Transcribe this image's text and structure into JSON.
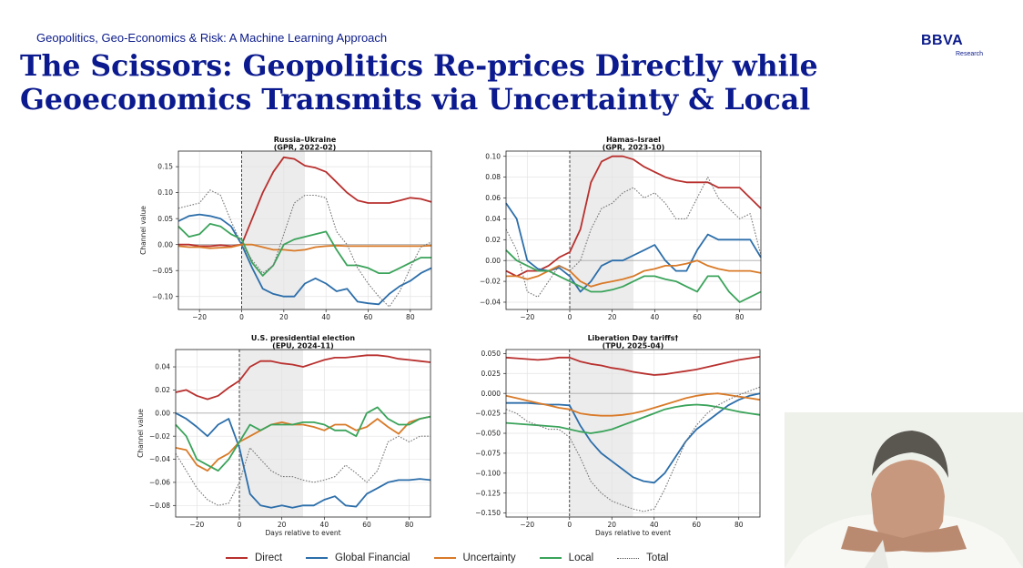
{
  "header": {
    "subtitle": "Geopolitics, Geo-Economics & Risk: A Machine Learning Approach",
    "title": "The Scissors: Geopolitics Re-prices Directly while Geoeconomics Transmits via Uncertainty & Local",
    "logo": "BBVA",
    "logo_sub": "Research"
  },
  "legend": {
    "direct": "Direct",
    "global_financial": "Global Financial",
    "uncertainty": "Uncertainty",
    "local": "Local",
    "total": "Total"
  },
  "colors": {
    "direct": "#b8302e",
    "global_financial": "#2c6eaa",
    "uncertainty": "#d97a28",
    "local": "#3aa35a",
    "total": "#777777",
    "shade": "#ececec"
  },
  "chart_data": [
    {
      "type": "line",
      "title": "Russia–Ukraine",
      "subtitle": "(GPR, 2022-02)",
      "xlabel": "",
      "ylabel": "Channel value",
      "xlim": [
        -30,
        90
      ],
      "ylim": [
        -0.125,
        0.18
      ],
      "xticks": [
        -20,
        0,
        20,
        40,
        60,
        80
      ],
      "yticks": [
        -0.1,
        -0.05,
        0.0,
        0.05,
        0.1,
        0.15
      ],
      "shaded_x": [
        0,
        30
      ],
      "x": [
        -30,
        -25,
        -20,
        -15,
        -10,
        -5,
        0,
        5,
        10,
        15,
        20,
        25,
        30,
        35,
        40,
        45,
        50,
        55,
        60,
        65,
        70,
        75,
        80,
        85,
        90
      ],
      "series": [
        {
          "name": "Direct",
          "values": [
            0.0,
            0.0,
            -0.003,
            -0.003,
            -0.001,
            -0.003,
            0.0,
            0.05,
            0.1,
            0.14,
            0.168,
            0.165,
            0.152,
            0.148,
            0.14,
            0.12,
            0.1,
            0.085,
            0.08,
            0.08,
            0.08,
            0.085,
            0.09,
            0.088,
            0.082
          ]
        },
        {
          "name": "Global Financial",
          "values": [
            0.045,
            0.055,
            0.058,
            0.055,
            0.05,
            0.035,
            0.0,
            -0.045,
            -0.085,
            -0.095,
            -0.1,
            -0.1,
            -0.075,
            -0.065,
            -0.075,
            -0.09,
            -0.085,
            -0.11,
            -0.113,
            -0.115,
            -0.095,
            -0.08,
            -0.07,
            -0.055,
            -0.045
          ]
        },
        {
          "name": "Uncertainty",
          "values": [
            -0.003,
            -0.005,
            -0.005,
            -0.007,
            -0.006,
            -0.005,
            0.0,
            0.0,
            -0.005,
            -0.01,
            -0.01,
            -0.012,
            -0.01,
            -0.005,
            -0.003,
            -0.002,
            -0.003,
            -0.003,
            -0.003,
            -0.003,
            -0.003,
            -0.003,
            -0.003,
            -0.003,
            -0.002
          ]
        },
        {
          "name": "Local",
          "values": [
            0.035,
            0.015,
            0.02,
            0.04,
            0.035,
            0.02,
            0.01,
            -0.035,
            -0.06,
            -0.04,
            0.0,
            0.01,
            0.015,
            0.02,
            0.025,
            -0.01,
            -0.04,
            -0.04,
            -0.045,
            -0.055,
            -0.055,
            -0.045,
            -0.035,
            -0.025,
            -0.025
          ]
        },
        {
          "name": "Total",
          "values": [
            0.07,
            0.075,
            0.08,
            0.105,
            0.095,
            0.045,
            0.0,
            -0.03,
            -0.055,
            -0.04,
            0.02,
            0.08,
            0.095,
            0.095,
            0.09,
            0.025,
            0.0,
            -0.045,
            -0.075,
            -0.1,
            -0.12,
            -0.09,
            -0.045,
            -0.005,
            0.005
          ]
        }
      ]
    },
    {
      "type": "line",
      "title": "Hamas–Israel",
      "subtitle": "(GPR, 2023-10)",
      "xlabel": "",
      "ylabel": "",
      "xlim": [
        -30,
        90
      ],
      "ylim": [
        -0.047,
        0.105
      ],
      "xticks": [
        -20,
        0,
        20,
        40,
        60,
        80
      ],
      "yticks": [
        -0.04,
        -0.02,
        0.0,
        0.02,
        0.04,
        0.06,
        0.08,
        0.1
      ],
      "shaded_x": [
        0,
        30
      ],
      "x": [
        -30,
        -25,
        -20,
        -15,
        -10,
        -5,
        0,
        5,
        10,
        15,
        20,
        25,
        30,
        35,
        40,
        45,
        50,
        55,
        60,
        65,
        70,
        75,
        80,
        85,
        90
      ],
      "series": [
        {
          "name": "Direct",
          "values": [
            -0.01,
            -0.015,
            -0.01,
            -0.01,
            -0.005,
            0.003,
            0.008,
            0.03,
            0.075,
            0.095,
            0.1,
            0.1,
            0.097,
            0.09,
            0.085,
            0.08,
            0.077,
            0.075,
            0.075,
            0.075,
            0.07,
            0.07,
            0.07,
            0.06,
            0.05
          ]
        },
        {
          "name": "Global Financial",
          "values": [
            0.055,
            0.04,
            0.0,
            -0.008,
            -0.01,
            -0.007,
            -0.015,
            -0.03,
            -0.02,
            -0.005,
            0.0,
            0.0,
            0.005,
            0.01,
            0.015,
            0.0,
            -0.01,
            -0.01,
            0.01,
            0.025,
            0.02,
            0.02,
            0.02,
            0.02,
            0.003
          ]
        },
        {
          "name": "Uncertainty",
          "values": [
            -0.015,
            -0.015,
            -0.018,
            -0.015,
            -0.01,
            -0.005,
            -0.01,
            -0.02,
            -0.025,
            -0.022,
            -0.02,
            -0.018,
            -0.015,
            -0.01,
            -0.008,
            -0.005,
            -0.005,
            -0.003,
            0.0,
            -0.005,
            -0.008,
            -0.01,
            -0.01,
            -0.01,
            -0.012
          ]
        },
        {
          "name": "Local",
          "values": [
            0.01,
            0.0,
            -0.005,
            -0.01,
            -0.01,
            -0.015,
            -0.02,
            -0.025,
            -0.03,
            -0.03,
            -0.028,
            -0.025,
            -0.02,
            -0.015,
            -0.015,
            -0.018,
            -0.02,
            -0.025,
            -0.03,
            -0.015,
            -0.015,
            -0.03,
            -0.04,
            -0.035,
            -0.03
          ]
        },
        {
          "name": "Total",
          "values": [
            0.03,
            0.01,
            -0.03,
            -0.035,
            -0.02,
            -0.005,
            -0.01,
            0.0,
            0.03,
            0.05,
            0.055,
            0.065,
            0.07,
            0.06,
            0.065,
            0.055,
            0.04,
            0.04,
            0.06,
            0.08,
            0.06,
            0.05,
            0.04,
            0.045,
            0.005
          ]
        }
      ]
    },
    {
      "type": "line",
      "title": "U.S. presidential election",
      "subtitle": "(EPU, 2024-11)",
      "xlabel": "Days relative to event",
      "ylabel": "Channel value",
      "xlim": [
        -30,
        90
      ],
      "ylim": [
        -0.09,
        0.055
      ],
      "xticks": [
        -20,
        0,
        20,
        40,
        60,
        80
      ],
      "yticks": [
        -0.08,
        -0.06,
        -0.04,
        -0.02,
        0.0,
        0.02,
        0.04
      ],
      "shaded_x": [
        0,
        30
      ],
      "x": [
        -30,
        -25,
        -20,
        -15,
        -10,
        -5,
        0,
        5,
        10,
        15,
        20,
        25,
        30,
        35,
        40,
        45,
        50,
        55,
        60,
        65,
        70,
        75,
        80,
        85,
        90
      ],
      "series": [
        {
          "name": "Direct",
          "values": [
            0.018,
            0.02,
            0.015,
            0.012,
            0.015,
            0.022,
            0.028,
            0.04,
            0.045,
            0.045,
            0.043,
            0.042,
            0.04,
            0.043,
            0.046,
            0.048,
            0.048,
            0.049,
            0.05,
            0.05,
            0.049,
            0.047,
            0.046,
            0.045,
            0.044
          ]
        },
        {
          "name": "Global Financial",
          "values": [
            0.0,
            -0.005,
            -0.012,
            -0.02,
            -0.01,
            -0.005,
            -0.03,
            -0.07,
            -0.08,
            -0.082,
            -0.08,
            -0.082,
            -0.08,
            -0.08,
            -0.075,
            -0.072,
            -0.08,
            -0.081,
            -0.07,
            -0.065,
            -0.06,
            -0.058,
            -0.058,
            -0.057,
            -0.058
          ]
        },
        {
          "name": "Uncertainty",
          "values": [
            -0.03,
            -0.032,
            -0.045,
            -0.05,
            -0.04,
            -0.035,
            -0.025,
            -0.02,
            -0.015,
            -0.01,
            -0.008,
            -0.01,
            -0.01,
            -0.012,
            -0.015,
            -0.01,
            -0.01,
            -0.015,
            -0.012,
            -0.005,
            -0.012,
            -0.018,
            -0.008,
            -0.005,
            -0.003
          ]
        },
        {
          "name": "Local",
          "values": [
            -0.01,
            -0.02,
            -0.04,
            -0.045,
            -0.05,
            -0.04,
            -0.025,
            -0.01,
            -0.015,
            -0.01,
            -0.01,
            -0.01,
            -0.008,
            -0.008,
            -0.01,
            -0.015,
            -0.015,
            -0.02,
            0.0,
            0.005,
            -0.005,
            -0.01,
            -0.01,
            -0.005,
            -0.003
          ]
        },
        {
          "name": "Total",
          "values": [
            -0.035,
            -0.05,
            -0.065,
            -0.075,
            -0.08,
            -0.078,
            -0.06,
            -0.03,
            -0.04,
            -0.05,
            -0.055,
            -0.055,
            -0.058,
            -0.06,
            -0.058,
            -0.055,
            -0.045,
            -0.052,
            -0.06,
            -0.05,
            -0.025,
            -0.02,
            -0.025,
            -0.02,
            -0.02
          ]
        }
      ]
    },
    {
      "type": "line",
      "title": "Liberation Day tariffs†",
      "subtitle": "(TPU, 2025-04)",
      "xlabel": "Days relative to event",
      "ylabel": "",
      "xlim": [
        -30,
        90
      ],
      "ylim": [
        -0.155,
        0.055
      ],
      "xticks": [
        -20,
        0,
        20,
        40,
        60,
        80
      ],
      "yticks": [
        -0.15,
        -0.125,
        -0.1,
        -0.075,
        -0.05,
        -0.025,
        0.0,
        0.025,
        0.05
      ],
      "shaded_x": [
        0,
        30
      ],
      "x": [
        -30,
        -25,
        -20,
        -15,
        -10,
        -5,
        0,
        5,
        10,
        15,
        20,
        25,
        30,
        35,
        40,
        45,
        50,
        55,
        60,
        65,
        70,
        75,
        80,
        85,
        90
      ],
      "series": [
        {
          "name": "Direct",
          "values": [
            0.045,
            0.044,
            0.043,
            0.042,
            0.043,
            0.045,
            0.045,
            0.04,
            0.037,
            0.035,
            0.032,
            0.03,
            0.027,
            0.025,
            0.023,
            0.024,
            0.026,
            0.028,
            0.03,
            0.033,
            0.036,
            0.039,
            0.042,
            0.044,
            0.046
          ]
        },
        {
          "name": "Global Financial",
          "values": [
            -0.012,
            -0.012,
            -0.012,
            -0.013,
            -0.014,
            -0.014,
            -0.015,
            -0.04,
            -0.06,
            -0.075,
            -0.085,
            -0.095,
            -0.105,
            -0.11,
            -0.112,
            -0.1,
            -0.08,
            -0.06,
            -0.045,
            -0.035,
            -0.025,
            -0.015,
            -0.008,
            -0.003,
            0.0
          ]
        },
        {
          "name": "Uncertainty",
          "values": [
            -0.003,
            -0.006,
            -0.009,
            -0.012,
            -0.015,
            -0.018,
            -0.02,
            -0.025,
            -0.027,
            -0.028,
            -0.028,
            -0.027,
            -0.025,
            -0.022,
            -0.018,
            -0.014,
            -0.01,
            -0.006,
            -0.003,
            -0.001,
            0.0,
            -0.002,
            -0.004,
            -0.006,
            -0.008
          ]
        },
        {
          "name": "Local",
          "values": [
            -0.037,
            -0.038,
            -0.039,
            -0.04,
            -0.041,
            -0.042,
            -0.045,
            -0.048,
            -0.05,
            -0.048,
            -0.045,
            -0.04,
            -0.035,
            -0.03,
            -0.025,
            -0.02,
            -0.017,
            -0.015,
            -0.014,
            -0.015,
            -0.017,
            -0.02,
            -0.023,
            -0.025,
            -0.027
          ]
        },
        {
          "name": "Total",
          "values": [
            -0.02,
            -0.025,
            -0.035,
            -0.04,
            -0.045,
            -0.045,
            -0.055,
            -0.08,
            -0.11,
            -0.125,
            -0.135,
            -0.14,
            -0.145,
            -0.148,
            -0.145,
            -0.12,
            -0.09,
            -0.06,
            -0.04,
            -0.025,
            -0.015,
            -0.008,
            -0.002,
            0.003,
            0.008
          ]
        }
      ]
    }
  ]
}
